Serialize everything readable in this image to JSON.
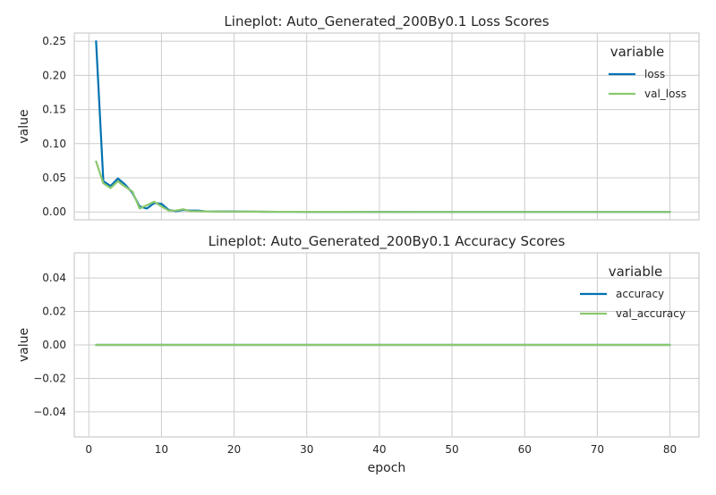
{
  "chart_data": [
    {
      "type": "line",
      "title": "Lineplot: Auto_Generated_200By0.1 Loss Scores",
      "xlabel": "",
      "ylabel": "value",
      "xlim": [
        -2,
        84
      ],
      "ylim": [
        -0.0115,
        0.262
      ],
      "xticks": [],
      "yticks": [
        0.0,
        0.05,
        0.1,
        0.15,
        0.2,
        0.25
      ],
      "ytick_labels": [
        "0.00",
        "0.05",
        "0.10",
        "0.15",
        "0.20",
        "0.25"
      ],
      "grid": true,
      "legend": {
        "title": "variable",
        "position": "top-right"
      },
      "series": [
        {
          "name": "loss",
          "color": "#0072b2",
          "x": [
            1,
            2,
            3,
            4,
            5,
            6,
            7,
            8,
            9,
            10,
            11,
            12,
            13,
            14,
            15,
            16,
            18,
            20,
            22,
            24,
            26,
            28,
            30,
            35,
            40,
            45,
            50,
            55,
            60,
            65,
            70,
            75,
            80
          ],
          "y": [
            0.25,
            0.045,
            0.038,
            0.049,
            0.04,
            0.028,
            0.008,
            0.005,
            0.013,
            0.012,
            0.003,
            0.001,
            0.003,
            0.002,
            0.002,
            0.001,
            0.0008,
            0.0006,
            0.0005,
            0.0003,
            0.0002,
            0.0002,
            0.0001,
            0.0001,
            0.0001,
            0.0,
            0.0,
            0.0,
            0.0,
            0.0,
            0.0,
            0.0,
            0.0
          ]
        },
        {
          "name": "val_loss",
          "color": "#8cc76e",
          "x": [
            1,
            2,
            3,
            4,
            5,
            6,
            7,
            8,
            9,
            10,
            11,
            12,
            13,
            14,
            15,
            16,
            18,
            20,
            22,
            24,
            26,
            28,
            30,
            35,
            40,
            45,
            50,
            55,
            60,
            65,
            70,
            75,
            80
          ],
          "y": [
            0.074,
            0.042,
            0.035,
            0.045,
            0.037,
            0.03,
            0.005,
            0.01,
            0.015,
            0.008,
            0.002,
            0.002,
            0.004,
            0.001,
            0.001,
            0.0008,
            0.0006,
            0.0005,
            0.0004,
            0.0003,
            0.0002,
            0.0002,
            0.0001,
            0.0001,
            0.0,
            0.0,
            0.0,
            0.0,
            0.0,
            0.0,
            0.0,
            0.0,
            0.0
          ]
        }
      ]
    },
    {
      "type": "line",
      "title": "Lineplot: Auto_Generated_200By0.1 Accuracy Scores",
      "xlabel": "epoch",
      "ylabel": "value",
      "xlim": [
        -2,
        84
      ],
      "ylim": [
        -0.055,
        0.055
      ],
      "xticks": [
        0,
        10,
        20,
        30,
        40,
        50,
        60,
        70,
        80
      ],
      "xtick_labels": [
        "0",
        "10",
        "20",
        "30",
        "40",
        "50",
        "60",
        "70",
        "80"
      ],
      "yticks": [
        -0.04,
        -0.02,
        0.0,
        0.02,
        0.04
      ],
      "ytick_labels": [
        "−0.04",
        "−0.02",
        "0.00",
        "0.02",
        "0.04"
      ],
      "grid": true,
      "legend": {
        "title": "variable",
        "position": "top-right"
      },
      "series": [
        {
          "name": "accuracy",
          "color": "#0072b2",
          "x": [
            1,
            80
          ],
          "y": [
            0.0,
            0.0
          ]
        },
        {
          "name": "val_accuracy",
          "color": "#8cc76e",
          "x": [
            1,
            80
          ],
          "y": [
            0.0,
            0.0
          ]
        }
      ]
    }
  ]
}
